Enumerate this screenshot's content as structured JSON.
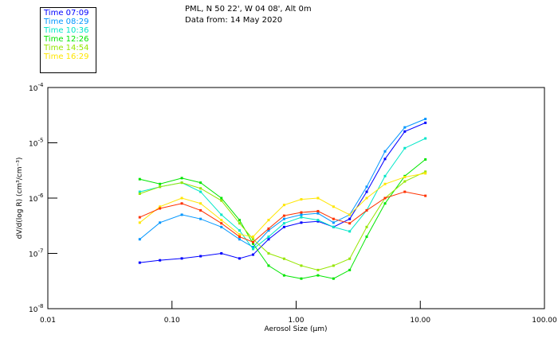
{
  "header": {
    "title_line1": "PML, N 50 22', W 04 08', Alt 0m",
    "title_line2": "Data from: 14 May 2020"
  },
  "chart_data": {
    "type": "line",
    "xscale": "log",
    "yscale": "log",
    "xlim": [
      0.01,
      100
    ],
    "ylim": [
      1e-08,
      0.0001
    ],
    "xlabel": "Aerosol Size (µm)",
    "ylabel": "dV/d(log R) (cm³/cm⁻³)",
    "xticks": [
      {
        "value": 0.01,
        "label": "0.01"
      },
      {
        "value": 0.1,
        "label": "0.10"
      },
      {
        "value": 1,
        "label": "1.00"
      },
      {
        "value": 10,
        "label": "10.00"
      },
      {
        "value": 100,
        "label": "100.00"
      }
    ],
    "yticks": [
      {
        "value": 0.0001,
        "base": "10",
        "exp": "-4"
      },
      {
        "value": 1e-05,
        "base": "10",
        "exp": "-5"
      },
      {
        "value": 1e-06,
        "base": "10",
        "exp": "-6"
      },
      {
        "value": 1e-07,
        "base": "10",
        "exp": "-7"
      },
      {
        "value": 1e-08,
        "base": "10",
        "exp": "-8"
      }
    ],
    "legend_position": "top-left",
    "x": [
      0.055,
      0.08,
      0.12,
      0.17,
      0.25,
      0.35,
      0.45,
      0.6,
      0.8,
      1.1,
      1.5,
      2.0,
      2.7,
      3.7,
      5.2,
      7.5,
      11
    ],
    "series": [
      {
        "name": "Time 07:09",
        "color": "#0000ff",
        "values": [
          6.8e-08,
          7.5e-08,
          8.1e-08,
          8.9e-08,
          1e-07,
          8.1e-08,
          9.5e-08,
          1.8e-07,
          3e-07,
          3.6e-07,
          3.8e-07,
          3e-07,
          4.2e-07,
          1.3e-06,
          5.1e-06,
          1.6e-05,
          2.3e-05
        ]
      },
      {
        "name": "Time 08:29",
        "color": "#0096ff",
        "values": [
          1.8e-07,
          3.6e-07,
          5e-07,
          4.2e-07,
          3e-07,
          1.8e-07,
          1.3e-07,
          2.6e-07,
          4.2e-07,
          5e-07,
          5.3e-07,
          3.6e-07,
          5e-07,
          1.6e-06,
          7e-06,
          1.9e-05,
          2.7e-05
        ]
      },
      {
        "name": "Time 10:36",
        "color": "#00e6c8",
        "values": [
          1.3e-06,
          1.6e-06,
          1.9e-06,
          1.3e-06,
          5e-07,
          2.6e-07,
          1.2e-07,
          2e-07,
          3.5e-07,
          4.5e-07,
          4e-07,
          3e-07,
          2.5e-07,
          6e-07,
          2.5e-06,
          8e-06,
          1.2e-05
        ]
      },
      {
        "name": "Time 12:26",
        "color": "#00e600",
        "values": [
          2.2e-06,
          1.8e-06,
          2.3e-06,
          1.9e-06,
          1e-06,
          4e-07,
          1.5e-07,
          6e-08,
          4e-08,
          3.5e-08,
          4e-08,
          3.5e-08,
          5e-08,
          2e-07,
          8e-07,
          2.5e-06,
          5e-06
        ]
      },
      {
        "name": "Time 14:54",
        "color": "#96e600",
        "values": [
          1.2e-06,
          1.6e-06,
          1.9e-06,
          1.5e-06,
          9e-07,
          3.5e-07,
          1.8e-07,
          1e-07,
          8e-08,
          6e-08,
          5e-08,
          6e-08,
          8e-08,
          3e-07,
          1e-06,
          2e-06,
          3e-06
        ]
      },
      {
        "name": "Time 16:29",
        "color": "#ffe600",
        "values": [
          3.6e-07,
          7e-07,
          1e-06,
          8e-07,
          4e-07,
          2.2e-07,
          2e-07,
          4e-07,
          7.5e-07,
          9.5e-07,
          1e-06,
          7e-07,
          5e-07,
          1e-06,
          1.8e-06,
          2.4e-06,
          2.8e-06
        ]
      },
      {
        "name": "",
        "color": "#ff3200",
        "values": [
          4.5e-07,
          6.5e-07,
          8e-07,
          6e-07,
          3.5e-07,
          2e-07,
          1.6e-07,
          2.8e-07,
          4.8e-07,
          5.5e-07,
          5.8e-07,
          4.2e-07,
          3.5e-07,
          6e-07,
          1e-06,
          1.3e-06,
          1.1e-06
        ]
      }
    ]
  }
}
